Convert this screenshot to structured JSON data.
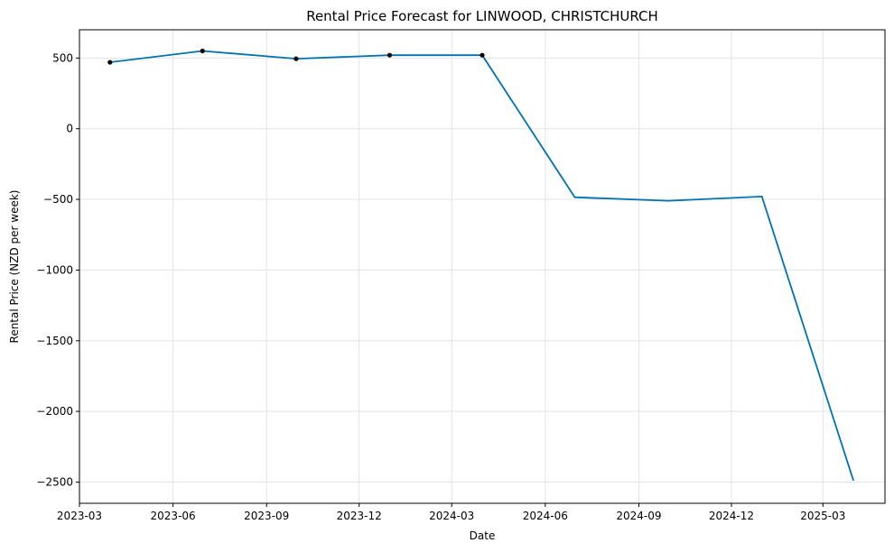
{
  "chart_data": {
    "type": "line",
    "title": "Rental Price Forecast for LINWOOD, CHRISTCHURCH",
    "xlabel": "Date",
    "ylabel": "Rental Price (NZD per week)",
    "xlim": [
      "2023-03-01",
      "2025-05-01"
    ],
    "ylim": [
      -2650,
      700
    ],
    "grid": true,
    "x_ticks": [
      "2023-03-01",
      "2023-06-01",
      "2023-09-01",
      "2023-12-01",
      "2024-03-01",
      "2024-06-01",
      "2024-09-01",
      "2024-12-01",
      "2025-03-01"
    ],
    "x_tick_labels": [
      "2023-03",
      "2023-06",
      "2023-09",
      "2023-12",
      "2024-03",
      "2024-06",
      "2024-09",
      "2024-12",
      "2025-03"
    ],
    "y_ticks": [
      500,
      0,
      -500,
      -1000,
      -1500,
      -2000,
      -2500
    ],
    "y_tick_labels": [
      "500",
      "0",
      "−500",
      "−1000",
      "−1500",
      "−2000",
      "−2500"
    ],
    "line_color": "#0072B2",
    "point_color": "#000000",
    "forecast": {
      "x": [
        "2023-03-31",
        "2023-06-30",
        "2023-09-30",
        "2023-12-31",
        "2024-03-31",
        "2024-06-30",
        "2024-09-30",
        "2024-12-31",
        "2025-03-31"
      ],
      "y": [
        470,
        550,
        495,
        520,
        520,
        -485,
        -510,
        -480,
        -2490
      ]
    },
    "observed": {
      "x": [
        "2023-03-31",
        "2023-06-30",
        "2023-09-30",
        "2023-12-31",
        "2024-03-31"
      ],
      "y": [
        470,
        550,
        495,
        520,
        520
      ]
    }
  }
}
